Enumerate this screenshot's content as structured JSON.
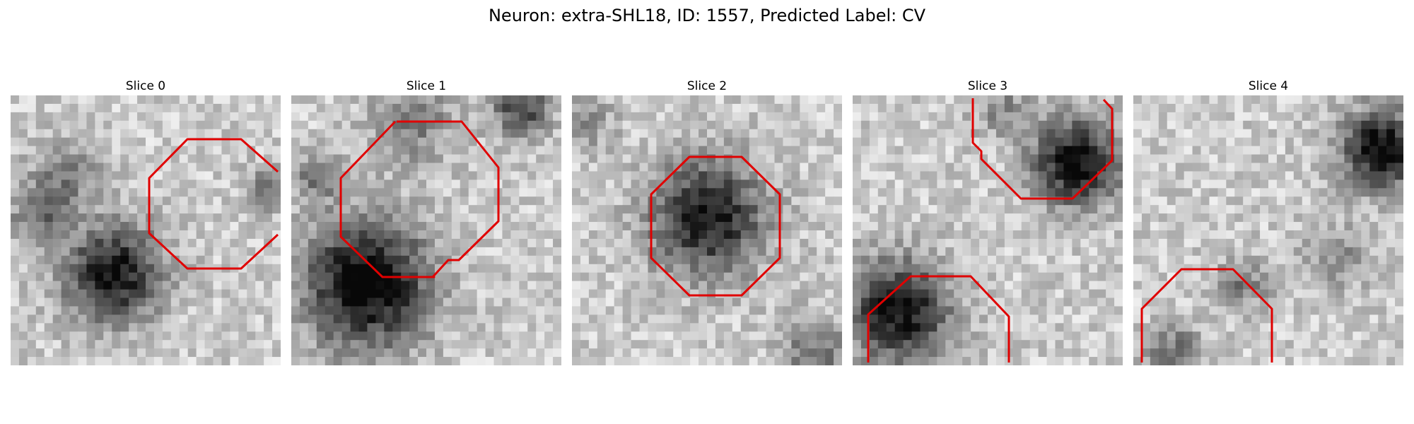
{
  "figure": {
    "title": "Neuron: extra-SHL18, ID: 1557, Predicted Label: CV"
  },
  "panels": [
    {
      "title": "Slice 0",
      "contour_color": "#e00000"
    },
    {
      "title": "Slice 1",
      "contour_color": "#e00000"
    },
    {
      "title": "Slice 2",
      "contour_color": "#e00000"
    },
    {
      "title": "Slice 3",
      "contour_color": "#e00000"
    },
    {
      "title": "Slice 4",
      "contour_color": "#e00000"
    }
  ]
}
